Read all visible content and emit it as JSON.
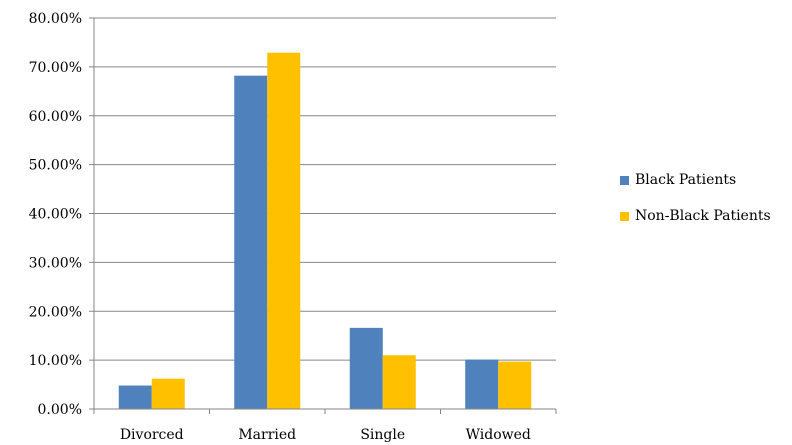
{
  "chart_data": {
    "type": "bar",
    "categories": [
      "Divorced",
      "Married",
      "Single",
      "Widowed"
    ],
    "series": [
      {
        "name": "Black Patients",
        "values": [
          4.8,
          68.2,
          16.6,
          10.1
        ],
        "color": "#4f81bd"
      },
      {
        "name": "Non-Black Patients",
        "values": [
          6.2,
          72.9,
          11.0,
          9.7
        ],
        "color": "#ffc000"
      }
    ],
    "y_ticks": [
      "0.00%",
      "10.00%",
      "20.00%",
      "30.00%",
      "40.00%",
      "50.00%",
      "60.00%",
      "70.00%",
      "80.00%"
    ],
    "ylim": [
      0,
      80
    ],
    "grid": true,
    "legend_position": "right"
  }
}
